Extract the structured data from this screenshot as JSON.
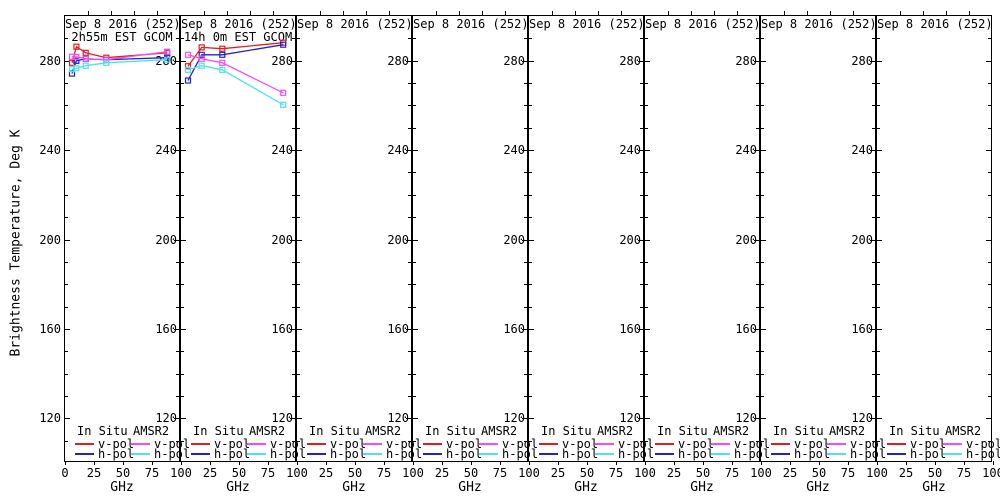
{
  "figure": {
    "ylabel": "Brightness Temperature, Deg K",
    "xlabel": "GHz",
    "background": "#ffffff",
    "frame_color": "#000000"
  },
  "axes": {
    "x_range": [
      0,
      100
    ],
    "y_range": [
      100,
      300
    ],
    "x_ticks": [
      0,
      25,
      50,
      75,
      100
    ],
    "y_ticks": [
      280,
      240,
      200,
      160,
      120
    ],
    "y_minor_step": 10,
    "x_unit_label": "GHz"
  },
  "legend": {
    "groups": [
      {
        "label": "In Situ",
        "entries": [
          {
            "label": "v-pol",
            "color": "#e02020"
          },
          {
            "label": "h-pol",
            "color": "#2222cc"
          }
        ]
      },
      {
        "label": "AMSR2",
        "entries": [
          {
            "label": "v-pol",
            "color": "#f050f0"
          },
          {
            "label": "h-pol",
            "color": "#50e0f0"
          }
        ]
      }
    ]
  },
  "chart_data": {
    "type": "line",
    "xlabel": "GHz",
    "ylabel": "Brightness Temperature, Deg K",
    "xlim": [
      0,
      100
    ],
    "ylim": [
      100,
      300
    ],
    "grid": false,
    "marker": "open-square",
    "panels": [
      {
        "title": "Sep 8 2016 (252)",
        "subtitle": "2h55m EST GCOM",
        "series": [
          {
            "name": "In Situ v-pol",
            "color": "#e02020",
            "x": [
              6.9,
              10.7,
              18.7,
              36.5,
              89.0
            ],
            "y": [
              278.6,
              285.8,
              283.1,
              280.9,
              283.1
            ]
          },
          {
            "name": "In Situ h-pol",
            "color": "#2222cc",
            "x": [
              6.9,
              10.7,
              18.7,
              36.5,
              89.0
            ],
            "y": [
              273.8,
              279.5,
              280.4,
              280.0,
              280.9
            ]
          },
          {
            "name": "AMSR2 v-pol",
            "color": "#f050f0",
            "x": [
              6.9,
              10.7,
              18.7,
              36.5,
              89.0
            ],
            "y": [
              281.3,
              281.3,
              280.4,
              280.0,
              283.6
            ]
          },
          {
            "name": "AMSR2 h-pol",
            "color": "#50e0f0",
            "x": [
              6.9,
              10.7,
              18.7,
              36.5,
              89.0
            ],
            "y": [
              275.8,
              276.2,
              277.3,
              278.6,
              280.0
            ]
          }
        ]
      },
      {
        "title": "Sep 8 2016 (252)",
        "subtitle": "14h 0m EST GCOM",
        "series": [
          {
            "name": "In Situ v-pol",
            "color": "#e02020",
            "x": [
              6.9,
              18.7,
              36.5,
              89.0
            ],
            "y": [
              277.1,
              285.5,
              284.9,
              287.6
            ]
          },
          {
            "name": "In Situ h-pol",
            "color": "#2222cc",
            "x": [
              6.9,
              18.7,
              36.5,
              89.0
            ],
            "y": [
              270.7,
              282.2,
              282.2,
              286.7
            ]
          },
          {
            "name": "AMSR2 v-pol",
            "color": "#f050f0",
            "x": [
              6.9,
              18.7,
              36.5,
              89.0
            ],
            "y": [
              282.2,
              280.4,
              278.6,
              265.2
            ]
          },
          {
            "name": "AMSR2 h-pol",
            "color": "#50e0f0",
            "x": [
              6.9,
              18.7,
              36.5,
              89.0
            ],
            "y": [
              275.5,
              277.3,
              275.5,
              259.8
            ]
          }
        ]
      },
      {
        "title": "Sep 8 2016 (252)",
        "subtitle": "",
        "series": []
      },
      {
        "title": "Sep 8 2016 (252)",
        "subtitle": "",
        "series": []
      },
      {
        "title": "Sep 8 2016 (252)",
        "subtitle": "",
        "series": []
      },
      {
        "title": "Sep 8 2016 (252)",
        "subtitle": "",
        "series": []
      },
      {
        "title": "Sep 8 2016 (252)",
        "subtitle": "",
        "series": []
      },
      {
        "title": "Sep 8 2016 (252)",
        "subtitle": "",
        "series": []
      }
    ]
  }
}
